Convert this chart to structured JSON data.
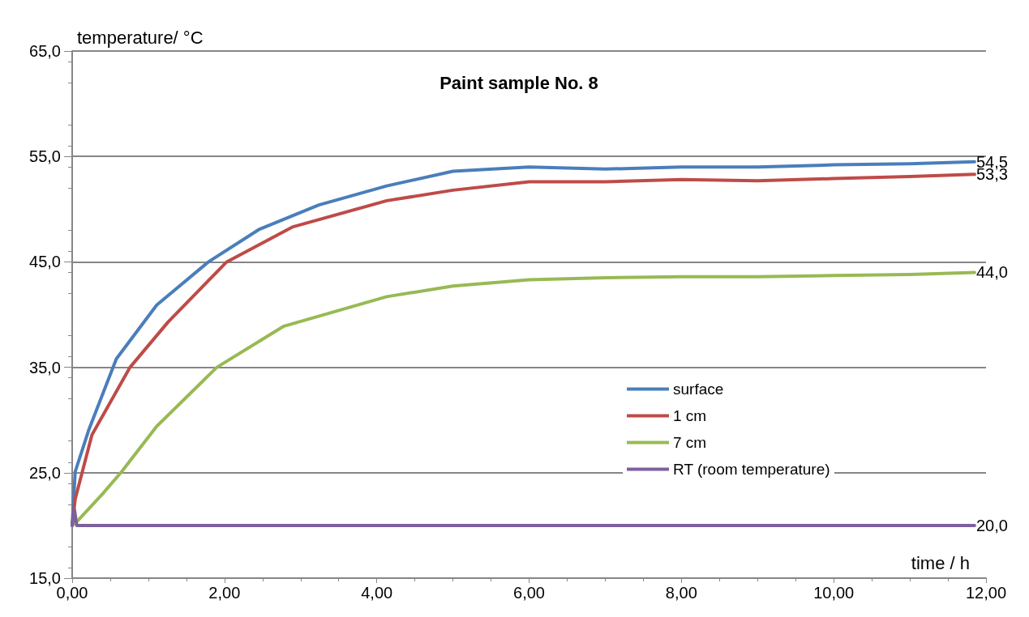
{
  "chart_data": {
    "type": "line",
    "title": "Paint sample No. 8",
    "xlabel": "time / h",
    "ylabel": "temperature/ °C",
    "series": [
      {
        "name": "surface",
        "color": "#4a7ebb",
        "x": [
          0,
          0.04,
          0.22,
          0.58,
          1.11,
          1.79,
          2.46,
          3.24,
          4.13,
          5,
          6,
          7,
          8,
          9,
          10,
          11,
          11.85
        ],
        "values": [
          20,
          25.1,
          29.1,
          35.8,
          40.9,
          45.0,
          48.1,
          50.4,
          52.2,
          53.6,
          54.0,
          53.8,
          54.0,
          54.0,
          54.2,
          54.3,
          54.5
        ],
        "value_labels": [
          null,
          null,
          null,
          null,
          null,
          null,
          null,
          null,
          null,
          null,
          null,
          null,
          null,
          null,
          null,
          null,
          "54,5"
        ]
      },
      {
        "name": "1 cm",
        "color": "#be4b48",
        "x": [
          0,
          0.04,
          0.26,
          0.76,
          1.26,
          2.03,
          2.89,
          4.13,
          5,
          6,
          7,
          8,
          9,
          10,
          11,
          11.85
        ],
        "values": [
          20,
          22.5,
          28.6,
          35.0,
          39.3,
          45.0,
          48.3,
          50.8,
          51.8,
          52.6,
          52.6,
          52.8,
          52.7,
          52.9,
          53.1,
          53.3
        ],
        "value_labels": [
          null,
          null,
          null,
          null,
          null,
          null,
          null,
          null,
          null,
          null,
          null,
          null,
          null,
          null,
          null,
          "53,3"
        ]
      },
      {
        "name": "7 cm",
        "color": "#98b954",
        "x": [
          0,
          0.08,
          0.4,
          0.65,
          1.11,
          1.9,
          2.78,
          4.13,
          5,
          6,
          7,
          8,
          9,
          10,
          11,
          11.85
        ],
        "values": [
          20,
          20.5,
          23.0,
          25.1,
          29.4,
          35.0,
          38.9,
          41.7,
          42.7,
          43.3,
          43.5,
          43.6,
          43.6,
          43.7,
          43.8,
          44.0
        ],
        "value_labels": [
          null,
          null,
          null,
          null,
          null,
          null,
          null,
          null,
          null,
          null,
          null,
          null,
          null,
          null,
          null,
          "44,0"
        ]
      },
      {
        "name": "RT (room temperature)",
        "color": "#7d60a0",
        "x": [
          0,
          0.03,
          0.06,
          1,
          2,
          4,
          6,
          8,
          10,
          11.85
        ],
        "values": [
          20,
          21.5,
          20,
          20,
          20,
          20,
          20,
          20,
          20,
          20
        ],
        "value_labels": [
          null,
          null,
          null,
          null,
          null,
          null,
          null,
          null,
          null,
          "20,0"
        ]
      }
    ],
    "xlim": [
      0,
      12
    ],
    "xticks": [
      {
        "value": 0,
        "label": "0,00"
      },
      {
        "value": 2,
        "label": "2,00"
      },
      {
        "value": 4,
        "label": "4,00"
      },
      {
        "value": 6,
        "label": "6,00"
      },
      {
        "value": 8,
        "label": "8,00"
      },
      {
        "value": 10,
        "label": "10,00"
      },
      {
        "value": 12,
        "label": "12,00"
      }
    ],
    "ylim": [
      15,
      65
    ],
    "yticks": [
      {
        "value": 15,
        "label": "15,0"
      },
      {
        "value": 25,
        "label": "25,0"
      },
      {
        "value": 35,
        "label": "35,0"
      },
      {
        "value": 45,
        "label": "45,0"
      },
      {
        "value": 55,
        "label": "55,0"
      },
      {
        "value": 65,
        "label": "65,0"
      }
    ],
    "grid": "y",
    "legend": "bottom right",
    "marker": "none",
    "line_style": "solid"
  }
}
